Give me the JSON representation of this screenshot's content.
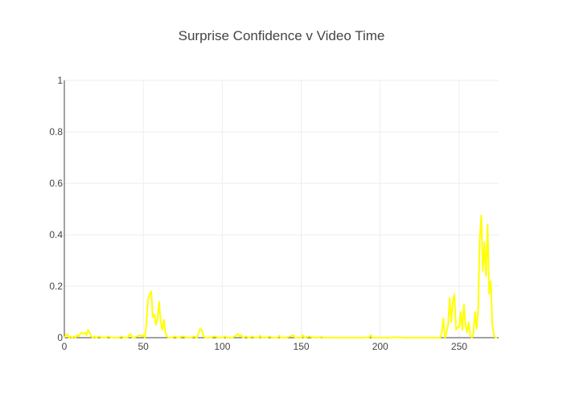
{
  "chart_data": {
    "type": "line",
    "title": "Surprise Confidence v Video Time",
    "xlabel": "",
    "ylabel": "",
    "xlim": [
      0,
      275
    ],
    "ylim": [
      0,
      1
    ],
    "x_ticks": [
      0,
      50,
      100,
      150,
      200,
      250
    ],
    "y_ticks": [
      0,
      0.2,
      0.4,
      0.6,
      0.8,
      1
    ],
    "x_tick_labels": [
      "0",
      "50",
      "100",
      "150",
      "200",
      "250"
    ],
    "y_tick_labels": [
      "0",
      "0.2",
      "0.4",
      "0.6",
      "0.8",
      "1"
    ],
    "grid": true,
    "legend": "none",
    "series": [
      {
        "color": "#ffff00",
        "points": [
          [
            0,
            0.0
          ],
          [
            1,
            0.01
          ],
          [
            2,
            0.015
          ],
          [
            3,
            0.0
          ],
          [
            4,
            0.005
          ],
          [
            5,
            0.0
          ],
          [
            6,
            0.005
          ],
          [
            7,
            0.0
          ],
          [
            8,
            0.01
          ],
          [
            9,
            0.005
          ],
          [
            10,
            0.015
          ],
          [
            11,
            0.02
          ],
          [
            12,
            0.015
          ],
          [
            13,
            0.02
          ],
          [
            14,
            0.01
          ],
          [
            15,
            0.03
          ],
          [
            16,
            0.02
          ],
          [
            17,
            0.005
          ],
          [
            18,
            0.0
          ],
          [
            19,
            0.005
          ],
          [
            20,
            0.0
          ],
          [
            22,
            0.005
          ],
          [
            24,
            0.0
          ],
          [
            26,
            0.0
          ],
          [
            28,
            0.005
          ],
          [
            30,
            0.0
          ],
          [
            32,
            0.0
          ],
          [
            34,
            0.0
          ],
          [
            36,
            0.005
          ],
          [
            38,
            0.0
          ],
          [
            40,
            0.0
          ],
          [
            41,
            0.01
          ],
          [
            42,
            0.015
          ],
          [
            43,
            0.0
          ],
          [
            44,
            0.0
          ],
          [
            46,
            0.005
          ],
          [
            48,
            0.01
          ],
          [
            49,
            0.005
          ],
          [
            50,
            0.01
          ],
          [
            51,
            0.0
          ],
          [
            52,
            0.06
          ],
          [
            53,
            0.15
          ],
          [
            54,
            0.17
          ],
          [
            55,
            0.18
          ],
          [
            56,
            0.08
          ],
          [
            57,
            0.09
          ],
          [
            58,
            0.05
          ],
          [
            59,
            0.07
          ],
          [
            60,
            0.14
          ],
          [
            61,
            0.06
          ],
          [
            62,
            0.03
          ],
          [
            63,
            0.07
          ],
          [
            64,
            0.02
          ],
          [
            65,
            0.005
          ],
          [
            66,
            0.0
          ],
          [
            68,
            0.0
          ],
          [
            70,
            0.005
          ],
          [
            72,
            0.0
          ],
          [
            75,
            0.005
          ],
          [
            78,
            0.0
          ],
          [
            80,
            0.0
          ],
          [
            82,
            0.005
          ],
          [
            84,
            0.0
          ],
          [
            85,
            0.02
          ],
          [
            86,
            0.035
          ],
          [
            87,
            0.03
          ],
          [
            88,
            0.01
          ],
          [
            89,
            0.0
          ],
          [
            92,
            0.0
          ],
          [
            95,
            0.005
          ],
          [
            98,
            0.0
          ],
          [
            100,
            0.0
          ],
          [
            102,
            0.005
          ],
          [
            103,
            0.0
          ],
          [
            106,
            0.0
          ],
          [
            108,
            0.005
          ],
          [
            109,
            0.01
          ],
          [
            110,
            0.015
          ],
          [
            111,
            0.005
          ],
          [
            112,
            0.01
          ],
          [
            113,
            0.0
          ],
          [
            115,
            0.005
          ],
          [
            117,
            0.0
          ],
          [
            119,
            0.005
          ],
          [
            121,
            0.0
          ],
          [
            123,
            0.0
          ],
          [
            124,
            0.008
          ],
          [
            125,
            0.0
          ],
          [
            128,
            0.0
          ],
          [
            130,
            0.005
          ],
          [
            132,
            0.0
          ],
          [
            135,
            0.0
          ],
          [
            136,
            0.008
          ],
          [
            137,
            0.0
          ],
          [
            140,
            0.0
          ],
          [
            143,
            0.005
          ],
          [
            145,
            0.01
          ],
          [
            146,
            0.0
          ],
          [
            150,
            0.0
          ],
          [
            151,
            0.01
          ],
          [
            152,
            0.0
          ],
          [
            155,
            0.005
          ],
          [
            158,
            0.0
          ],
          [
            160,
            0.0
          ],
          [
            163,
            0.003
          ],
          [
            165,
            0.0
          ],
          [
            170,
            0.0
          ],
          [
            175,
            0.0
          ],
          [
            180,
            0.0
          ],
          [
            185,
            0.0
          ],
          [
            190,
            0.0
          ],
          [
            193,
            0.002
          ],
          [
            194,
            0.01
          ],
          [
            195,
            0.0
          ],
          [
            200,
            0.0
          ],
          [
            205,
            0.0
          ],
          [
            210,
            0.002
          ],
          [
            215,
            0.0
          ],
          [
            220,
            0.0
          ],
          [
            225,
            0.0
          ],
          [
            230,
            0.0
          ],
          [
            235,
            0.0
          ],
          [
            238,
            0.0
          ],
          [
            239,
            0.02
          ],
          [
            240,
            0.075
          ],
          [
            241,
            0.0
          ],
          [
            242,
            0.02
          ],
          [
            243,
            0.05
          ],
          [
            244,
            0.155
          ],
          [
            245,
            0.06
          ],
          [
            246,
            0.14
          ],
          [
            247,
            0.17
          ],
          [
            248,
            0.03
          ],
          [
            249,
            0.04
          ],
          [
            250,
            0.04
          ],
          [
            251,
            0.1
          ],
          [
            252,
            0.03
          ],
          [
            253,
            0.13
          ],
          [
            254,
            0.05
          ],
          [
            255,
            0.02
          ],
          [
            256,
            0.06
          ],
          [
            257,
            0.01
          ],
          [
            258,
            0.0
          ],
          [
            259,
            0.015
          ],
          [
            260,
            0.1
          ],
          [
            261,
            0.035
          ],
          [
            262,
            0.1
          ],
          [
            263,
            0.38
          ],
          [
            264,
            0.475
          ],
          [
            265,
            0.26
          ],
          [
            266,
            0.37
          ],
          [
            267,
            0.24
          ],
          [
            268,
            0.44
          ],
          [
            269,
            0.17
          ],
          [
            270,
            0.22
          ],
          [
            271,
            0.05
          ],
          [
            272,
            0.01
          ],
          [
            273,
            0.0
          ],
          [
            274,
            0.0
          ]
        ]
      }
    ]
  }
}
